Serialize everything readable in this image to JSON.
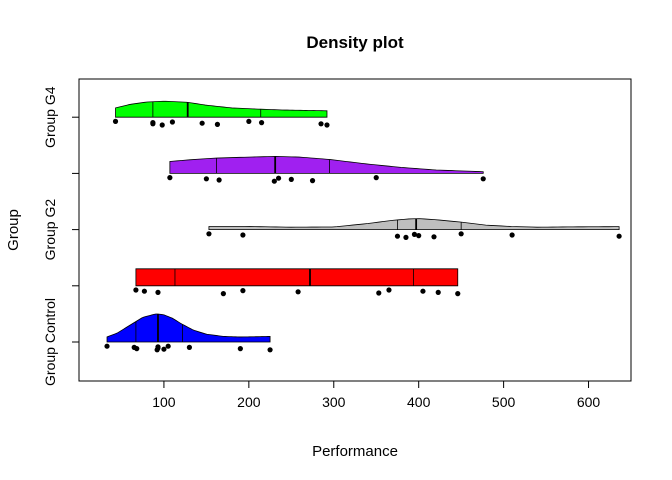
{
  "chart_data": {
    "type": "density",
    "title": "Density plot",
    "xlabel": "Performance",
    "ylabel": "Group",
    "xlim": [
      0,
      650
    ],
    "x_ticks": [
      100,
      200,
      300,
      400,
      500,
      600
    ],
    "y_tick_labels": [
      "Group Control",
      "Group G2",
      "Group G4"
    ],
    "grid": false,
    "series": [
      {
        "color": "#0000FF",
        "min": 33,
        "max": 225,
        "quartiles": [
          67,
          93,
          122
        ],
        "median": 93,
        "density_x": [
          33,
          45,
          60,
          75,
          90,
          93,
          100,
          110,
          120,
          135,
          150,
          170,
          190,
          210,
          225
        ],
        "density_rel": [
          0.18,
          0.32,
          0.6,
          0.88,
          1.0,
          1.0,
          0.97,
          0.85,
          0.66,
          0.42,
          0.28,
          0.2,
          0.18,
          0.19,
          0.2
        ],
        "points": [
          33,
          65,
          68,
          92,
          93,
          93,
          100,
          105,
          130,
          190,
          225
        ]
      },
      {
        "color": "#FF0000",
        "min": 67,
        "max": 446,
        "quartiles": [
          113,
          272,
          394
        ],
        "median": 272,
        "density_x": [
          67,
          446
        ],
        "density_rel": [
          1.0,
          1.0
        ],
        "points": [
          67,
          77,
          93,
          170,
          193,
          258,
          353,
          365,
          405,
          423,
          446
        ]
      },
      {
        "color": "#BEBEBE",
        "min": 153,
        "max": 636,
        "quartiles": [
          375,
          397,
          450
        ],
        "median": 397,
        "density_x": [
          153,
          200,
          250,
          300,
          340,
          370,
          390,
          400,
          420,
          450,
          480,
          510,
          540,
          580,
          610,
          636
        ],
        "density_rel": [
          0.28,
          0.28,
          0.22,
          0.24,
          0.55,
          0.85,
          0.98,
          1.0,
          0.9,
          0.68,
          0.4,
          0.28,
          0.22,
          0.25,
          0.26,
          0.27
        ],
        "points": [
          153,
          193,
          375,
          385,
          395,
          400,
          418,
          450,
          510,
          636
        ]
      },
      {
        "color": "#A020F0",
        "min": 107,
        "max": 476,
        "quartiles": [
          162,
          231,
          295
        ],
        "median": 231,
        "density_x": [
          107,
          130,
          160,
          200,
          231,
          260,
          295,
          340,
          380,
          420,
          476
        ],
        "density_rel": [
          0.7,
          0.8,
          0.9,
          0.96,
          1.0,
          0.96,
          0.82,
          0.55,
          0.35,
          0.2,
          0.1
        ],
        "points": [
          107,
          150,
          165,
          230,
          235,
          250,
          275,
          350,
          476
        ]
      },
      {
        "color": "#00FF00",
        "min": 43,
        "max": 292,
        "quartiles": [
          87,
          128,
          214
        ],
        "median": 128,
        "density_x": [
          43,
          60,
          80,
          100,
          128,
          150,
          180,
          214,
          240,
          270,
          292
        ],
        "density_rel": [
          0.58,
          0.8,
          0.95,
          1.0,
          0.93,
          0.75,
          0.58,
          0.5,
          0.45,
          0.42,
          0.4
        ],
        "points": [
          43,
          87,
          87,
          98,
          110,
          145,
          163,
          200,
          215,
          285,
          292
        ]
      }
    ]
  }
}
